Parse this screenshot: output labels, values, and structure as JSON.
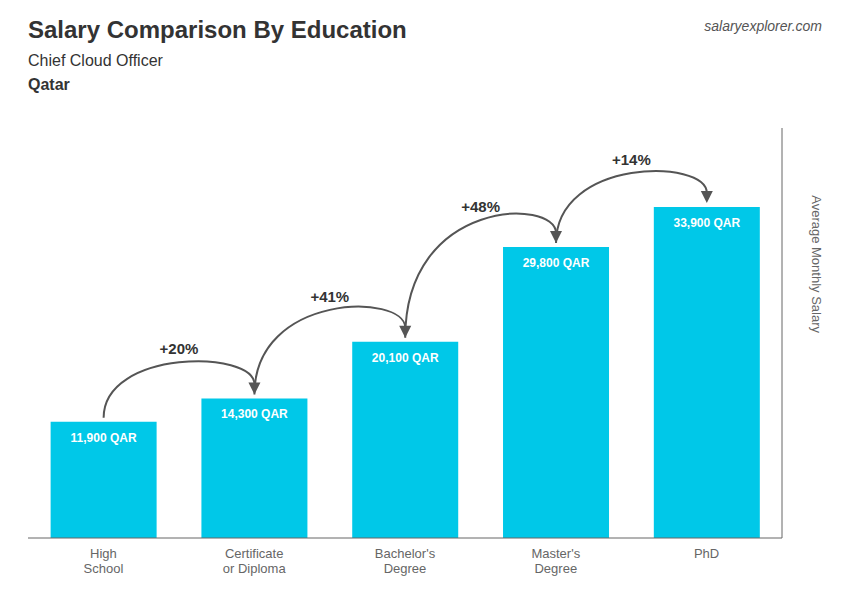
{
  "chart_data": {
    "type": "bar",
    "title": "Salary Comparison By Education",
    "subtitle": "Chief Cloud Officer",
    "location": "Qatar",
    "source": "salaryexplorer.com",
    "y_label": "Average Monthly Salary",
    "categories": [
      "High\nSchool",
      "Certificate\nor Diploma",
      "Bachelor's\nDegree",
      "Master's\nDegree",
      "PhD"
    ],
    "values": [
      11900,
      14300,
      20100,
      29800,
      33900
    ],
    "value_labels": [
      "11,900 QAR",
      "14,300 QAR",
      "20,100 QAR",
      "29,800 QAR",
      "33,900 QAR"
    ],
    "data_labels": true,
    "color": "#00c8e8",
    "ylim": [
      0,
      42000
    ],
    "tick_labels": "x",
    "grid": false,
    "annotations": [
      {
        "text": "+20%",
        "from": "High\nSchool",
        "to": "Certificate\nor Diploma"
      },
      {
        "text": "+41%",
        "from": "Certificate\nor Diploma",
        "to": "Bachelor's\nDegree"
      },
      {
        "text": "+48%",
        "from": "Bachelor's\nDegree",
        "to": "Master's\nDegree"
      },
      {
        "text": "+14%",
        "from": "Master's\nDegree",
        "to": "PhD"
      }
    ]
  }
}
